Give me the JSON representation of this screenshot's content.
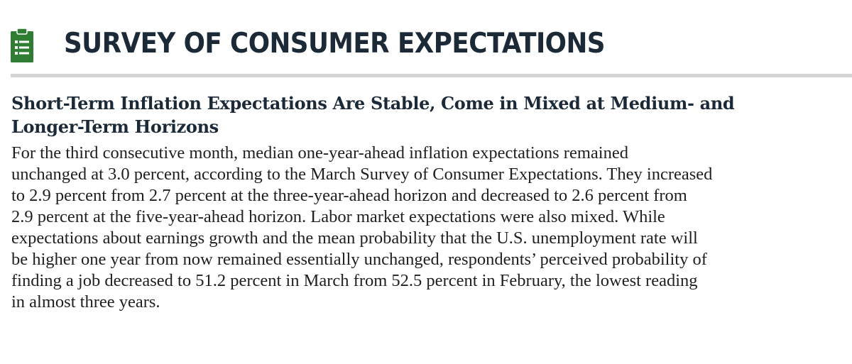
{
  "header": {
    "icon": "clipboard-list-icon",
    "icon_color": "#2e7d32",
    "title": "SURVEY OF CONSUMER EXPECTATIONS"
  },
  "article": {
    "headline_line1": "Short-Term Inflation Expectations Are Stable, Come in Mixed at Medium- and",
    "headline_line2": "Longer-Term Horizons",
    "body_lines": [
      "For the third consecutive month, median one-year-ahead inflation expectations remained",
      "unchanged at 3.0 percent, according to the March Survey of Consumer Expectations. They increased",
      "to 2.9 percent from 2.7 percent at the three-year-ahead horizon and decreased to 2.6 percent from",
      "2.9 percent at the five-year-ahead horizon. Labor market expectations were also mixed. While",
      "expectations about earnings growth and the mean probability that the U.S. unemployment rate will",
      "be higher one year from now remained essentially unchanged, respondents’ perceived probability of",
      "finding a job decreased to 51.2 percent in March from 52.5 percent in February, the lowest reading",
      "in almost three years."
    ]
  }
}
